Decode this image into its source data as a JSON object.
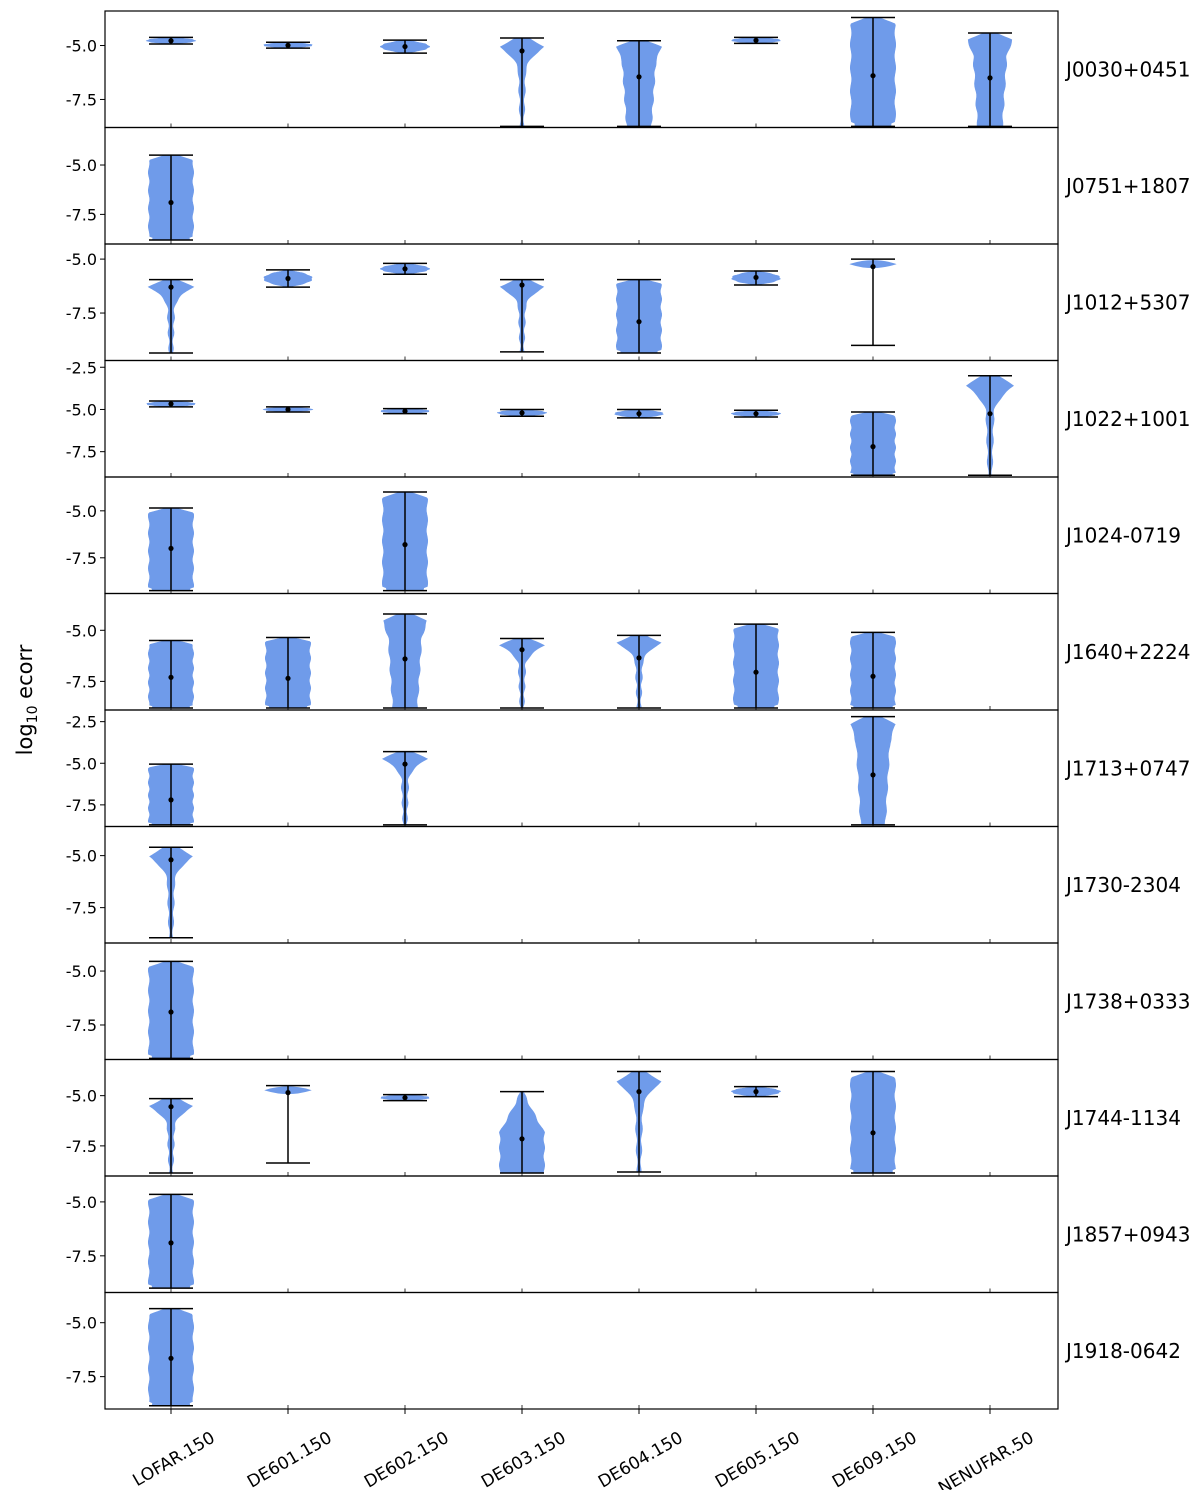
{
  "chart_data": {
    "type": "violin",
    "ylabel_base": "log",
    "ylabel_sub": "10",
    "ylabel_rest": " ecorr",
    "categories": [
      "LOFAR.150",
      "DE601.150",
      "DE602.150",
      "DE603.150",
      "DE604.150",
      "DE605.150",
      "DE609.150",
      "NENUFAR.50"
    ],
    "violin_color": "#6f9bea",
    "panels": [
      {
        "pulsar": "J0030+0451",
        "ylim": [
          -8.8,
          -3.4
        ],
        "yticks": [
          "-5.0",
          "-7.5"
        ],
        "ytick_values": [
          -5.0,
          -7.5
        ],
        "violins": [
          {
            "cat": 0,
            "min": -4.93,
            "max": -4.62,
            "median": -4.78,
            "shape": "tight"
          },
          {
            "cat": 1,
            "min": -5.12,
            "max": -4.85,
            "median": -4.99,
            "shape": "tight"
          },
          {
            "cat": 2,
            "min": -5.35,
            "max": -4.75,
            "median": -5.05,
            "shape": "tight"
          },
          {
            "cat": 3,
            "min": -8.75,
            "max": -4.65,
            "median": -5.25,
            "shape": "topheavy"
          },
          {
            "cat": 4,
            "min": -8.75,
            "max": -4.78,
            "median": -6.45,
            "shape": "top_flare"
          },
          {
            "cat": 5,
            "min": -4.9,
            "max": -4.62,
            "median": -4.76,
            "shape": "tight"
          },
          {
            "cat": 6,
            "min": -8.75,
            "max": -3.7,
            "median": -6.4,
            "shape": "uniform"
          },
          {
            "cat": 7,
            "min": -8.75,
            "max": -4.42,
            "median": -6.5,
            "shape": "top_flare"
          }
        ]
      },
      {
        "pulsar": "J0751+1807",
        "ylim": [
          -9.0,
          -3.1
        ],
        "yticks": [
          "-5.0",
          "-7.5"
        ],
        "ytick_values": [
          -5.0,
          -7.5
        ],
        "violins": [
          {
            "cat": 0,
            "min": -8.8,
            "max": -4.5,
            "median": -6.9,
            "shape": "uniform"
          }
        ]
      },
      {
        "pulsar": "J1012+5307",
        "ylim": [
          -9.7,
          -4.3
        ],
        "yticks": [
          "-5.0",
          "-7.5"
        ],
        "ytick_values": [
          -5.0,
          -7.5
        ],
        "violins": [
          {
            "cat": 0,
            "min": -9.35,
            "max": -5.95,
            "median": -6.3,
            "shape": "topheavy"
          },
          {
            "cat": 1,
            "min": -6.3,
            "max": -5.5,
            "median": -5.9,
            "shape": "tight"
          },
          {
            "cat": 2,
            "min": -5.7,
            "max": -5.2,
            "median": -5.45,
            "shape": "tight"
          },
          {
            "cat": 3,
            "min": -9.3,
            "max": -5.95,
            "median": -6.2,
            "shape": "topheavy"
          },
          {
            "cat": 4,
            "min": -9.35,
            "max": -5.95,
            "median": -7.9,
            "shape": "uniform"
          },
          {
            "cat": 5,
            "min": -6.2,
            "max": -5.55,
            "median": -5.85,
            "shape": "tight"
          },
          {
            "cat": 6,
            "min": -9.0,
            "max": -5.0,
            "median": -5.35,
            "shape": "tight_tail"
          }
        ]
      },
      {
        "pulsar": "J1022+1001",
        "ylim": [
          -9.0,
          -2.1
        ],
        "yticks": [
          "-2.5",
          "-5.0",
          "-7.5"
        ],
        "ytick_values": [
          -2.5,
          -5.0,
          -7.5
        ],
        "violins": [
          {
            "cat": 0,
            "min": -4.85,
            "max": -4.5,
            "median": -4.67,
            "shape": "tight"
          },
          {
            "cat": 1,
            "min": -5.15,
            "max": -4.85,
            "median": -5.0,
            "shape": "tight"
          },
          {
            "cat": 2,
            "min": -5.25,
            "max": -4.95,
            "median": -5.1,
            "shape": "tight"
          },
          {
            "cat": 3,
            "min": -5.4,
            "max": -5.0,
            "median": -5.2,
            "shape": "tight"
          },
          {
            "cat": 4,
            "min": -5.5,
            "max": -5.0,
            "median": -5.25,
            "shape": "tight"
          },
          {
            "cat": 5,
            "min": -5.45,
            "max": -5.05,
            "median": -5.25,
            "shape": "tight"
          },
          {
            "cat": 6,
            "min": -8.9,
            "max": -5.15,
            "median": -7.2,
            "shape": "uniform"
          },
          {
            "cat": 7,
            "min": -8.9,
            "max": -3.0,
            "median": -5.25,
            "shape": "topheavy_wide"
          }
        ]
      },
      {
        "pulsar": "J1024-0719",
        "ylim": [
          -9.4,
          -3.2
        ],
        "yticks": [
          "-5.0",
          "-7.5"
        ],
        "ytick_values": [
          -5.0,
          -7.5
        ],
        "violins": [
          {
            "cat": 0,
            "min": -9.25,
            "max": -4.85,
            "median": -7.0,
            "shape": "uniform"
          },
          {
            "cat": 2,
            "min": -9.25,
            "max": -4.0,
            "median": -6.8,
            "shape": "uniform"
          }
        ]
      },
      {
        "pulsar": "J1640+2224",
        "ylim": [
          -8.9,
          -3.2
        ],
        "yticks": [
          "-5.0",
          "-7.5"
        ],
        "ytick_values": [
          -5.0,
          -7.5
        ],
        "violins": [
          {
            "cat": 0,
            "min": -8.8,
            "max": -5.5,
            "median": -7.3,
            "shape": "uniform"
          },
          {
            "cat": 1,
            "min": -8.8,
            "max": -5.35,
            "median": -7.35,
            "shape": "uniform"
          },
          {
            "cat": 2,
            "min": -8.8,
            "max": -4.2,
            "median": -6.4,
            "shape": "top_flare"
          },
          {
            "cat": 3,
            "min": -8.8,
            "max": -5.4,
            "median": -5.95,
            "shape": "topheavy"
          },
          {
            "cat": 4,
            "min": -8.8,
            "max": -5.25,
            "median": -6.35,
            "shape": "topheavy"
          },
          {
            "cat": 5,
            "min": -8.8,
            "max": -4.7,
            "median": -7.05,
            "shape": "uniform"
          },
          {
            "cat": 6,
            "min": -8.8,
            "max": -5.1,
            "median": -7.25,
            "shape": "uniform"
          }
        ]
      },
      {
        "pulsar": "J1713+0747",
        "ylim": [
          -8.8,
          -1.8
        ],
        "yticks": [
          "-2.5",
          "-5.0",
          "-7.5"
        ],
        "ytick_values": [
          -2.5,
          -5.0,
          -7.5
        ],
        "violins": [
          {
            "cat": 0,
            "min": -8.7,
            "max": -5.05,
            "median": -7.2,
            "shape": "uniform"
          },
          {
            "cat": 2,
            "min": -8.7,
            "max": -4.3,
            "median": -5.05,
            "shape": "topheavy"
          },
          {
            "cat": 6,
            "min": -8.7,
            "max": -2.2,
            "median": -5.7,
            "shape": "top_flare"
          }
        ]
      },
      {
        "pulsar": "J1730-2304",
        "ylim": [
          -9.2,
          -3.6
        ],
        "yticks": [
          "-5.0",
          "-7.5"
        ],
        "ytick_values": [
          -5.0,
          -7.5
        ],
        "violins": [
          {
            "cat": 0,
            "min": -8.95,
            "max": -4.6,
            "median": -5.2,
            "shape": "topheavy"
          }
        ]
      },
      {
        "pulsar": "J1738+0333",
        "ylim": [
          -9.1,
          -3.7
        ],
        "yticks": [
          "-5.0",
          "-7.5"
        ],
        "ytick_values": [
          -5.0,
          -7.5
        ],
        "violins": [
          {
            "cat": 0,
            "min": -9.05,
            "max": -4.55,
            "median": -6.9,
            "shape": "uniform"
          }
        ]
      },
      {
        "pulsar": "J1744-1134",
        "ylim": [
          -9.0,
          -3.2
        ],
        "yticks": [
          "-5.0",
          "-7.5"
        ],
        "ytick_values": [
          -5.0,
          -7.5
        ],
        "violins": [
          {
            "cat": 0,
            "min": -8.85,
            "max": -5.15,
            "median": -5.55,
            "shape": "topheavy"
          },
          {
            "cat": 1,
            "min": -8.35,
            "max": -4.5,
            "median": -4.85,
            "shape": "tight_tail"
          },
          {
            "cat": 2,
            "min": -5.25,
            "max": -4.95,
            "median": -5.1,
            "shape": "tight"
          },
          {
            "cat": 3,
            "min": -8.85,
            "max": -4.8,
            "median": -7.15,
            "shape": "bottom_heavy"
          },
          {
            "cat": 4,
            "min": -8.8,
            "max": -3.8,
            "median": -4.8,
            "shape": "topheavy"
          },
          {
            "cat": 5,
            "min": -5.05,
            "max": -4.55,
            "median": -4.8,
            "shape": "tight"
          },
          {
            "cat": 6,
            "min": -8.85,
            "max": -3.8,
            "median": -6.85,
            "shape": "uniform"
          }
        ]
      },
      {
        "pulsar": "J1857+0943",
        "ylim": [
          -9.2,
          -3.8
        ],
        "yticks": [
          "-5.0",
          "-7.5"
        ],
        "ytick_values": [
          -5.0,
          -7.5
        ],
        "violins": [
          {
            "cat": 0,
            "min": -9.0,
            "max": -4.65,
            "median": -6.9,
            "shape": "uniform"
          }
        ]
      },
      {
        "pulsar": "J1918-0642",
        "ylim": [
          -9.0,
          -3.6
        ],
        "yticks": [
          "-5.0",
          "-7.5"
        ],
        "ytick_values": [
          -5.0,
          -7.5
        ],
        "violins": [
          {
            "cat": 0,
            "min": -8.85,
            "max": -4.35,
            "median": -6.65,
            "shape": "uniform"
          }
        ]
      }
    ]
  }
}
